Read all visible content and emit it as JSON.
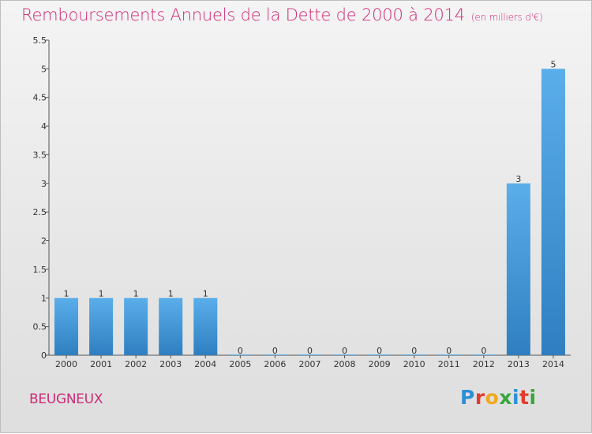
{
  "header": {
    "title": "Remboursements Annuels de la Dette de 2000 à 2014",
    "unit": "(en milliers d'€)"
  },
  "footer": {
    "city": "BEUGNEUX",
    "brand_letters": [
      {
        "char": "P",
        "color": "#2b8fd6"
      },
      {
        "char": "r",
        "color": "#e23b2e"
      },
      {
        "char": "o",
        "color": "#f2a81d"
      },
      {
        "char": "x",
        "color": "#3aa63c"
      },
      {
        "char": "i",
        "color": "#2b8fd6"
      },
      {
        "char": "t",
        "color": "#e23b2e"
      },
      {
        "char": "i",
        "color": "#3aa63c"
      }
    ]
  },
  "colors": {
    "bar_light": "#5aaeea",
    "bar_dark": "#2f7fc0",
    "accent": "#cf2a77"
  },
  "chart_data": {
    "type": "bar",
    "title": "Remboursements Annuels de la Dette de 2000 à 2014",
    "unit": "(en milliers d'€)",
    "categories": [
      "2000",
      "2001",
      "2002",
      "2003",
      "2004",
      "2005",
      "2006",
      "2007",
      "2008",
      "2009",
      "2010",
      "2011",
      "2012",
      "2013",
      "2014"
    ],
    "values": [
      1,
      1,
      1,
      1,
      1,
      0,
      0,
      0,
      0,
      0,
      0,
      0,
      0,
      3,
      5
    ],
    "data_labels": [
      "1",
      "1",
      "1",
      "1",
      "1",
      "0",
      "0",
      "0",
      "0",
      "0",
      "0",
      "0",
      "0",
      "3",
      "5"
    ],
    "ylim": [
      0,
      5.5
    ],
    "yticks": [
      0,
      0.5,
      1,
      1.5,
      2,
      2.5,
      3,
      3.5,
      4,
      4.5,
      5,
      5.5
    ],
    "ytick_labels": [
      "0",
      "0.5",
      "1",
      "1.5",
      "2",
      "2.5",
      "3",
      "3.5",
      "4",
      "4.5",
      "5",
      "5.5"
    ],
    "grid": false
  }
}
